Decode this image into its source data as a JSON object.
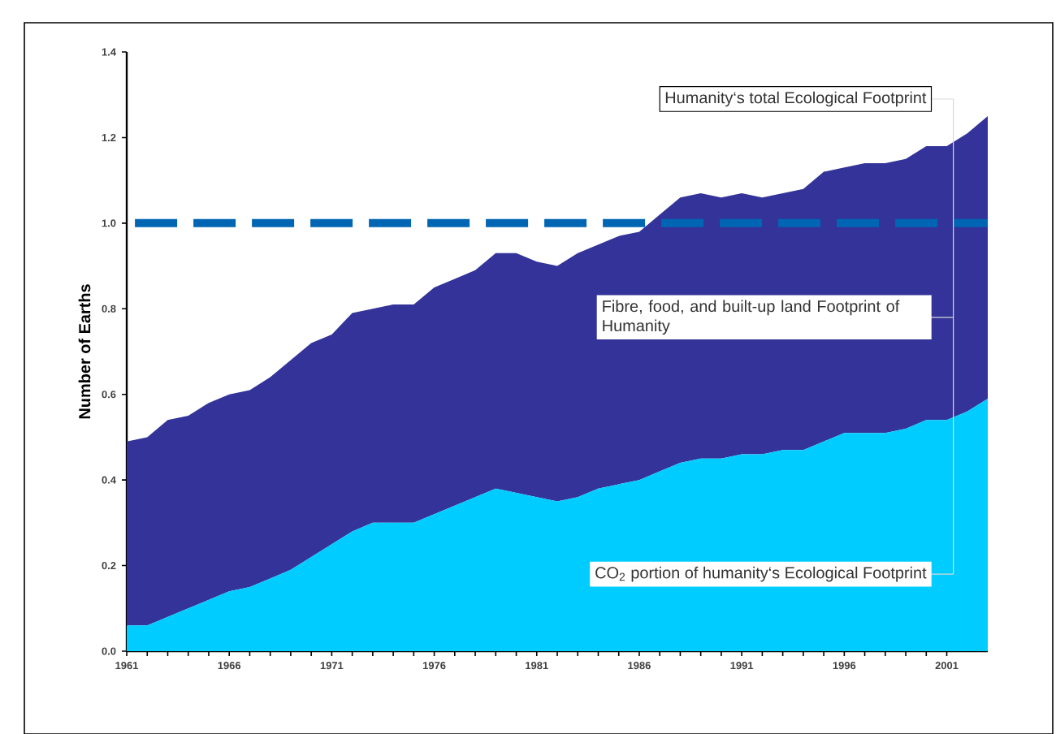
{
  "chart_data": {
    "type": "area",
    "stacked": true,
    "ylabel": "Number of Earths",
    "x": [
      1961,
      1962,
      1963,
      1964,
      1965,
      1966,
      1967,
      1968,
      1969,
      1970,
      1971,
      1972,
      1973,
      1974,
      1975,
      1976,
      1977,
      1978,
      1979,
      1980,
      1981,
      1982,
      1983,
      1984,
      1985,
      1986,
      1987,
      1988,
      1989,
      1990,
      1991,
      1992,
      1993,
      1994,
      1995,
      1996,
      1997,
      1998,
      1999,
      2000,
      2001,
      2002,
      2003
    ],
    "series": [
      {
        "name": "CO$_{2}$ portion of humanity‘s Ecological Footprint",
        "color": "#00ccff",
        "values": [
          0.06,
          0.06,
          0.08,
          0.1,
          0.12,
          0.14,
          0.15,
          0.17,
          0.19,
          0.22,
          0.25,
          0.28,
          0.3,
          0.3,
          0.3,
          0.32,
          0.34,
          0.36,
          0.38,
          0.37,
          0.36,
          0.35,
          0.36,
          0.38,
          0.39,
          0.4,
          0.42,
          0.44,
          0.45,
          0.45,
          0.46,
          0.46,
          0.47,
          0.47,
          0.49,
          0.51,
          0.51,
          0.51,
          0.52,
          0.54,
          0.54,
          0.56,
          0.59
        ]
      },
      {
        "name": "Fibre, food, and built-up  land Footprint of Humanity",
        "color": "#333399",
        "values": [
          0.43,
          0.44,
          0.46,
          0.45,
          0.46,
          0.46,
          0.46,
          0.47,
          0.49,
          0.5,
          0.49,
          0.51,
          0.5,
          0.51,
          0.51,
          0.53,
          0.53,
          0.53,
          0.55,
          0.56,
          0.55,
          0.55,
          0.57,
          0.57,
          0.58,
          0.58,
          0.6,
          0.62,
          0.62,
          0.61,
          0.61,
          0.6,
          0.6,
          0.61,
          0.63,
          0.62,
          0.63,
          0.63,
          0.63,
          0.64,
          0.64,
          0.65,
          0.66
        ]
      }
    ],
    "xlim": [
      1961,
      2003
    ],
    "xticks": [
      1961,
      1966,
      1971,
      1976,
      1981,
      1986,
      1991,
      1996,
      2001
    ],
    "ylim": [
      0,
      1.4
    ],
    "yticks": [
      {
        "value": 0,
        "label": "0.0"
      },
      0.2,
      0.4,
      0.6,
      0.8,
      {
        "value": 1,
        "label": "1.0"
      },
      1.2,
      1.4
    ],
    "ref_lines": [
      {
        "axis": "y",
        "value": 1,
        "color": "#0066b3",
        "line_style": "dashed"
      }
    ],
    "annotations": [
      "Humanity‘s total Ecological Footprint"
    ],
    "legend": false,
    "grid": false
  }
}
